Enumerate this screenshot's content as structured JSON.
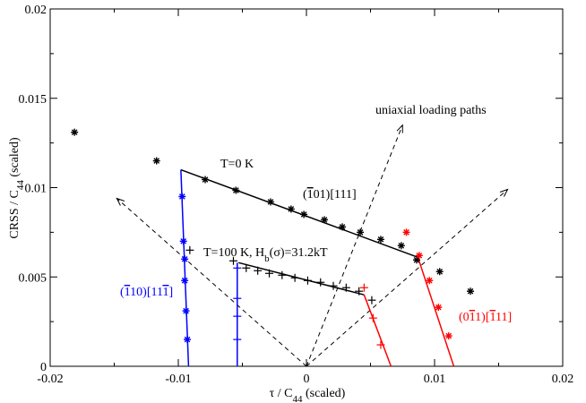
{
  "chart_data": {
    "type": "scatter",
    "xlim": [
      -0.02,
      0.02
    ],
    "ylim": [
      0,
      0.02
    ],
    "x_ticks": [
      -0.02,
      -0.01,
      0,
      0.01,
      0.02
    ],
    "x_tick_labels": [
      "-0.02",
      "-0.01",
      "0",
      "0.01",
      "0.02"
    ],
    "y_ticks": [
      0,
      0.005,
      0.01,
      0.015,
      0.02
    ],
    "y_tick_labels": [
      "0",
      "0.005",
      "0.01",
      "0.015",
      "0.02"
    ],
    "xlabel": {
      "main": "τ / C",
      "sub": "44",
      "suffix": "  (scaled)"
    },
    "ylabel": {
      "main": "CRSS / C",
      "sub": "44",
      "suffix": "  (scaled)"
    },
    "grid": false,
    "colors": {
      "black": "#000000",
      "blue": "#0000ff",
      "red": "#ff0000"
    },
    "series": [
      {
        "color": "#000000",
        "marker": "star",
        "points": [
          [
            -0.0181,
            0.0131
          ],
          [
            -0.0117,
            0.0115
          ],
          [
            -0.0079,
            0.01045
          ],
          [
            -0.0055,
            0.00985
          ],
          [
            -0.0028,
            0.0092
          ],
          [
            -0.0012,
            0.0088
          ],
          [
            -0.0002,
            0.0085
          ],
          [
            0.0014,
            0.0082
          ],
          [
            0.0028,
            0.0078
          ],
          [
            0.0042,
            0.0075
          ],
          [
            0.0058,
            0.0071
          ],
          [
            0.0074,
            0.00675
          ],
          [
            0.0086,
            0.00595
          ],
          [
            0.0104,
            0.0053
          ],
          [
            0.0128,
            0.0042
          ]
        ],
        "line": [
          [
            -0.0098,
            0.011
          ],
          [
            0.0087,
            0.0061
          ]
        ]
      },
      {
        "color": "#000000",
        "marker": "plus",
        "points": [
          [
            -0.0091,
            0.0065
          ],
          [
            -0.0057,
            0.0059
          ],
          [
            -0.0047,
            0.0055
          ],
          [
            -0.0038,
            0.00535
          ],
          [
            -0.0029,
            0.0052
          ],
          [
            -0.0019,
            0.0051
          ],
          [
            -0.0009,
            0.00495
          ],
          [
            0.0001,
            0.0048
          ],
          [
            0.0011,
            0.0047
          ],
          [
            0.0021,
            0.0045
          ],
          [
            0.0031,
            0.0044
          ],
          [
            0.0041,
            0.0042
          ],
          [
            0.0051,
            0.0037
          ]
        ],
        "line": [
          [
            -0.0053,
            0.0058
          ],
          [
            0.0045,
            0.004
          ]
        ]
      },
      {
        "color": "#0000ff",
        "marker": "star",
        "points": [
          [
            -0.0097,
            0.0095
          ],
          [
            -0.0096,
            0.007
          ],
          [
            -0.0095,
            0.006
          ],
          [
            -0.0095,
            0.0048
          ],
          [
            -0.0094,
            0.0031
          ],
          [
            -0.0093,
            0.0015
          ]
        ],
        "line": [
          [
            -0.0098,
            0.011
          ],
          [
            -0.0092,
            0
          ]
        ]
      },
      {
        "color": "#0000ff",
        "marker": "plus",
        "points": [
          [
            -0.0054,
            0.0055
          ],
          [
            -0.0054,
            0.0038
          ],
          [
            -0.0054,
            0.0028
          ],
          [
            -0.0054,
            0.0015
          ]
        ],
        "line": [
          [
            -0.0054,
            0.0058
          ],
          [
            -0.0054,
            0
          ]
        ]
      },
      {
        "color": "#ff0000",
        "marker": "star",
        "points": [
          [
            0.0078,
            0.0075
          ],
          [
            0.0088,
            0.0062
          ],
          [
            0.0096,
            0.0048
          ],
          [
            0.0103,
            0.0033
          ],
          [
            0.0111,
            0.0017
          ]
        ],
        "line": [
          [
            0.0087,
            0.0061
          ],
          [
            0.0115,
            0
          ]
        ]
      },
      {
        "color": "#ff0000",
        "marker": "plus",
        "points": [
          [
            0.0045,
            0.0044
          ],
          [
            0.0052,
            0.0027
          ],
          [
            0.0058,
            0.0012
          ]
        ],
        "line": [
          [
            0.0045,
            0.004
          ],
          [
            0.0066,
            0
          ]
        ]
      }
    ],
    "loading_paths": [
      [
        -0.0148,
        0.0094
      ],
      [
        0.0075,
        0.0135
      ],
      [
        0.0157,
        0.0099
      ]
    ],
    "annotations": [
      {
        "text": "uniaxial loading paths",
        "x": 0.0065,
        "y": 0.0143,
        "color": "#000000"
      },
      {
        "text": "T=0 K",
        "x": -0.0077,
        "y": 0.0114,
        "color": "#000000"
      },
      {
        "text": "(101)[111]",
        "overbar": "1",
        "x": -0.0013,
        "y": 0.0093,
        "color": "#000000"
      },
      {
        "text": "T=100 K, H (σ)=31.2kT",
        "sub": "b",
        "x": -0.0088,
        "y": 0.0059,
        "color": "#000000"
      },
      {
        "text": "(110)[111]",
        "overbar": "1",
        "x": -0.0176,
        "y": 0.0039,
        "color": "#0000ff"
      },
      {
        "text": "(011)(111]",
        "overbar": "1",
        "x": 0.0084,
        "y": 0.0024,
        "color": "#ff0000"
      }
    ]
  }
}
